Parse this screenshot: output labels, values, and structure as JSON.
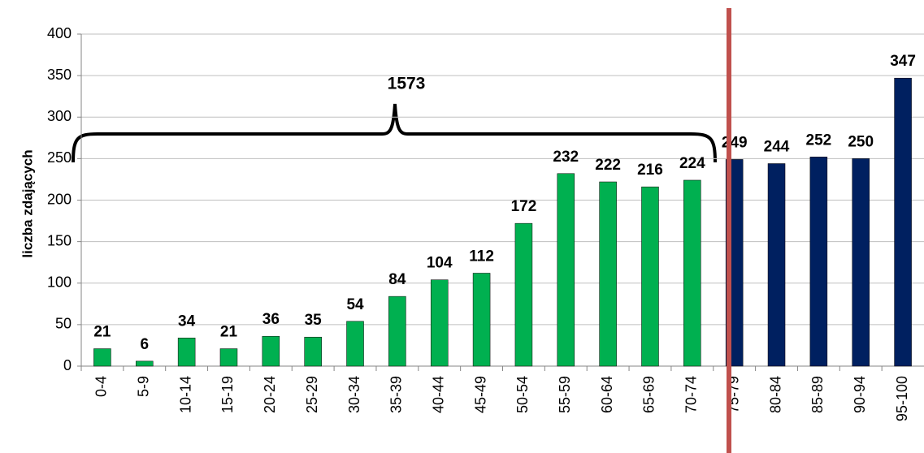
{
  "chart_data": {
    "type": "bar",
    "y_label": "liczba zdających",
    "annotations": [
      "1573"
    ],
    "categories": [
      "0-4",
      "5-9",
      "10-14",
      "15-19",
      "20-24",
      "25-29",
      "30-34",
      "35-39",
      "40-44",
      "45-49",
      "50-54",
      "55-59",
      "60-64",
      "65-69",
      "70-74",
      "75-79",
      "80-84",
      "85-89",
      "90-94",
      "95-100"
    ],
    "values": [
      21,
      6,
      34,
      21,
      36,
      35,
      54,
      84,
      104,
      112,
      172,
      232,
      222,
      216,
      224,
      249,
      244,
      252,
      250,
      347
    ],
    "colors": [
      "#00b050",
      "#00b050",
      "#00b050",
      "#00b050",
      "#00b050",
      "#00b050",
      "#00b050",
      "#00b050",
      "#00b050",
      "#00b050",
      "#00b050",
      "#00b050",
      "#00b050",
      "#00b050",
      "#00b050",
      "#002060",
      "#002060",
      "#002060",
      "#002060",
      "#002060"
    ],
    "ylim": [
      0,
      400
    ],
    "yticks": [
      0,
      50,
      100,
      150,
      200,
      250,
      300,
      350,
      400
    ],
    "grid": true
  }
}
